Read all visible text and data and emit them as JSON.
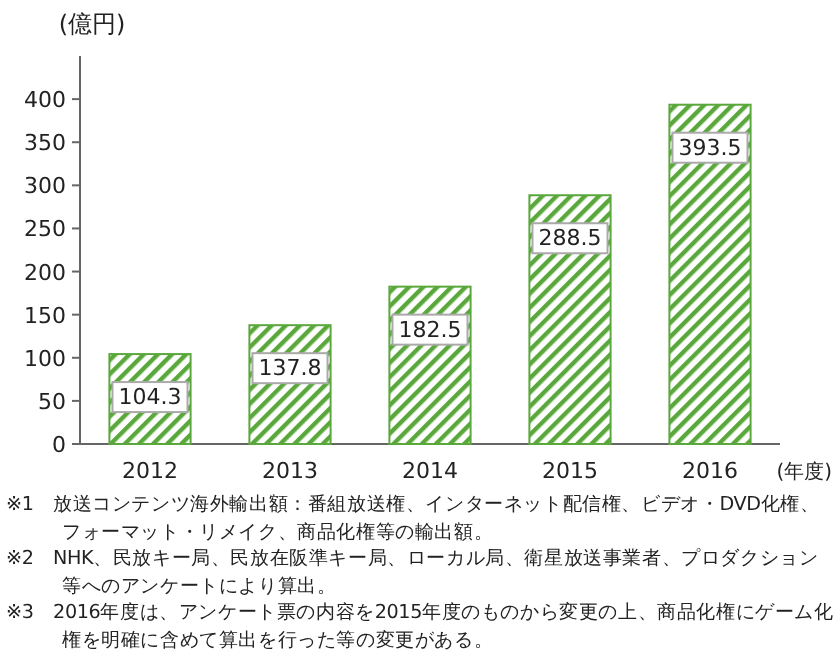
{
  "chart_data": {
    "type": "bar",
    "ylabel": "(億円)",
    "xlabel": "(年度)",
    "categories": [
      "2012",
      "2013",
      "2014",
      "2015",
      "2016"
    ],
    "values": [
      104.3,
      137.8,
      182.5,
      288.5,
      393.5
    ],
    "color": "#5aa83c",
    "data_labels": true,
    "ylim": [
      0,
      450
    ],
    "yticks": [
      0,
      50,
      100,
      150,
      200,
      250,
      300,
      350,
      400
    ],
    "annotations": [
      "※1　放送コンテンツ海外輸出額：番組放送権、インターネット配信権、ビデオ・DVD化権、フォーマット・リメイク、商品化権等の輸出額。",
      "※2　NHK、民放キー局、民放在阪準キー局、ローカル局、衛星放送事業者、プロダクション等へのアンケートにより算出。",
      "※3　2016年度は、アンケート票の内容を2015年度のものから変更の上、商品化権にゲーム化権を明確に含めて算出を行った等の変更がある。"
    ]
  }
}
